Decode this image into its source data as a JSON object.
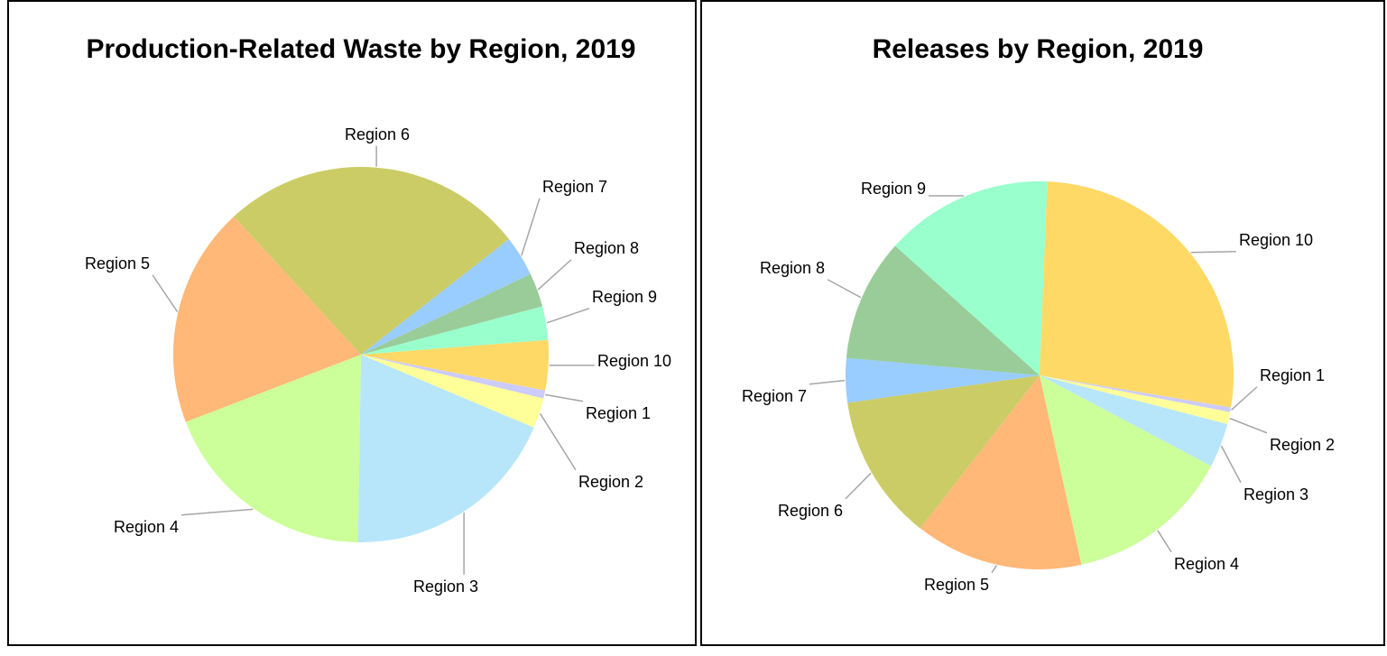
{
  "chart_data": [
    {
      "type": "pie",
      "title": "Production-Related Waste by Region, 2019",
      "categories": [
        "Region 1",
        "Region 2",
        "Region 3",
        "Region 4",
        "Region 5",
        "Region 6",
        "Region 7",
        "Region 8",
        "Region 9",
        "Region 10"
      ],
      "values": [
        0.7,
        2.6,
        18.9,
        18.9,
        19.0,
        26.3,
        3.5,
        2.9,
        2.9,
        4.3
      ],
      "colors": [
        "#ccccff",
        "#ffff99",
        "#b7e6fb",
        "#ccff99",
        "#ffb877",
        "#cccc66",
        "#99ccff",
        "#99cc99",
        "#99ffcc",
        "#ffd966"
      ]
    },
    {
      "type": "pie",
      "title": "Releases by Region, 2019",
      "categories": [
        "Region 1",
        "Region 2",
        "Region 3",
        "Region 4",
        "Region 5",
        "Region 6",
        "Region 7",
        "Region 8",
        "Region 9",
        "Region 10"
      ],
      "values": [
        0.4,
        1.0,
        3.7,
        13.8,
        14.0,
        12.2,
        3.7,
        10.2,
        14.0,
        27.0
      ],
      "colors": [
        "#ccccff",
        "#ffff99",
        "#b7e6fb",
        "#ccff99",
        "#ffb877",
        "#cccc66",
        "#99ccff",
        "#99cc99",
        "#99ffcc",
        "#ffd966"
      ]
    }
  ]
}
